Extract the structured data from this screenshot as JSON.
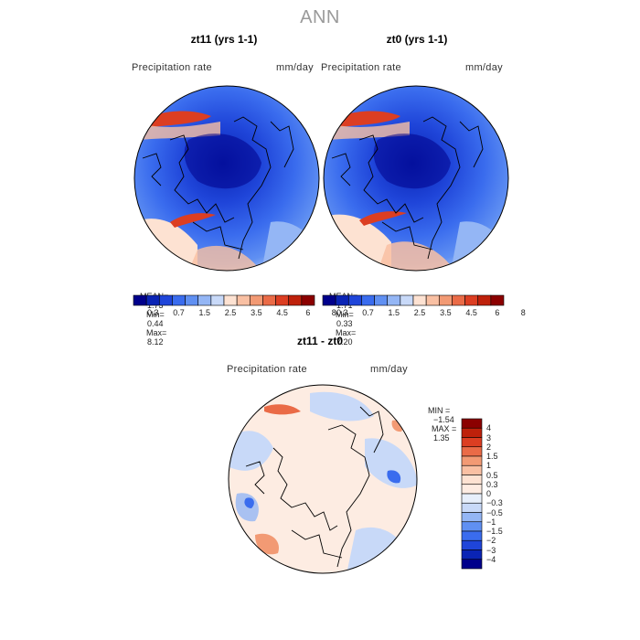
{
  "figure": {
    "title": "ANN",
    "colors": {
      "background": "#ffffff",
      "title_gray": "#9a9a9a",
      "outline": "#000000"
    }
  },
  "panels": [
    {
      "id": "zt11",
      "title": "zt11 (yrs 1-1)",
      "variable": "Precipitation rate",
      "units": "mm/day",
      "stats": {
        "mean_label": "MEAN=",
        "mean": "1.73",
        "min_label": "Min=",
        "min": "0.44",
        "max_label": "Max=",
        "max": "8.12"
      }
    },
    {
      "id": "zt0",
      "title": "zt0 (yrs 1-1)",
      "variable": "Precipitation rate",
      "units": "mm/day",
      "stats": {
        "mean_label": "MEAN=",
        "mean": "1.71",
        "min_label": "Min=",
        "min": "0.33",
        "max_label": "Max=",
        "max": "7.20"
      }
    },
    {
      "id": "diff",
      "title": "zt11 - zt0",
      "variable": "Precipitation rate",
      "units": "mm/day",
      "stats": {
        "min_label": "MIN =",
        "min": "−1.54",
        "max_label": "MAX =",
        "max": "1.35"
      }
    }
  ],
  "colorbar_abs": {
    "colors": [
      "#00008b",
      "#0a24b5",
      "#1f45d9",
      "#3a6cee",
      "#6090f2",
      "#94b6f5",
      "#c8d9f8",
      "#fde2d2",
      "#f9c0a3",
      "#f29a74",
      "#ea6b47",
      "#dc3e22",
      "#be210b",
      "#8b0000"
    ],
    "labels": [
      "0.3",
      "0.7",
      "1.5",
      "2.5",
      "3.5",
      "4.5",
      "6",
      "8"
    ]
  },
  "colorbar_diff": {
    "colors": [
      "#00008b",
      "#0a24b5",
      "#1f45d9",
      "#3a6cee",
      "#6090f2",
      "#94b6f5",
      "#c8d9f8",
      "#e7effb",
      "#fdece2",
      "#fde2d2",
      "#f9c0a3",
      "#f29a74",
      "#ea6b47",
      "#dc3e22",
      "#be210b",
      "#8b0000"
    ],
    "labels": [
      "4",
      "3",
      "2",
      "1.5",
      "1",
      "0.5",
      "0.3",
      "0",
      "−0.3",
      "−0.5",
      "−1",
      "−1.5",
      "−2",
      "−3",
      "−4"
    ]
  }
}
